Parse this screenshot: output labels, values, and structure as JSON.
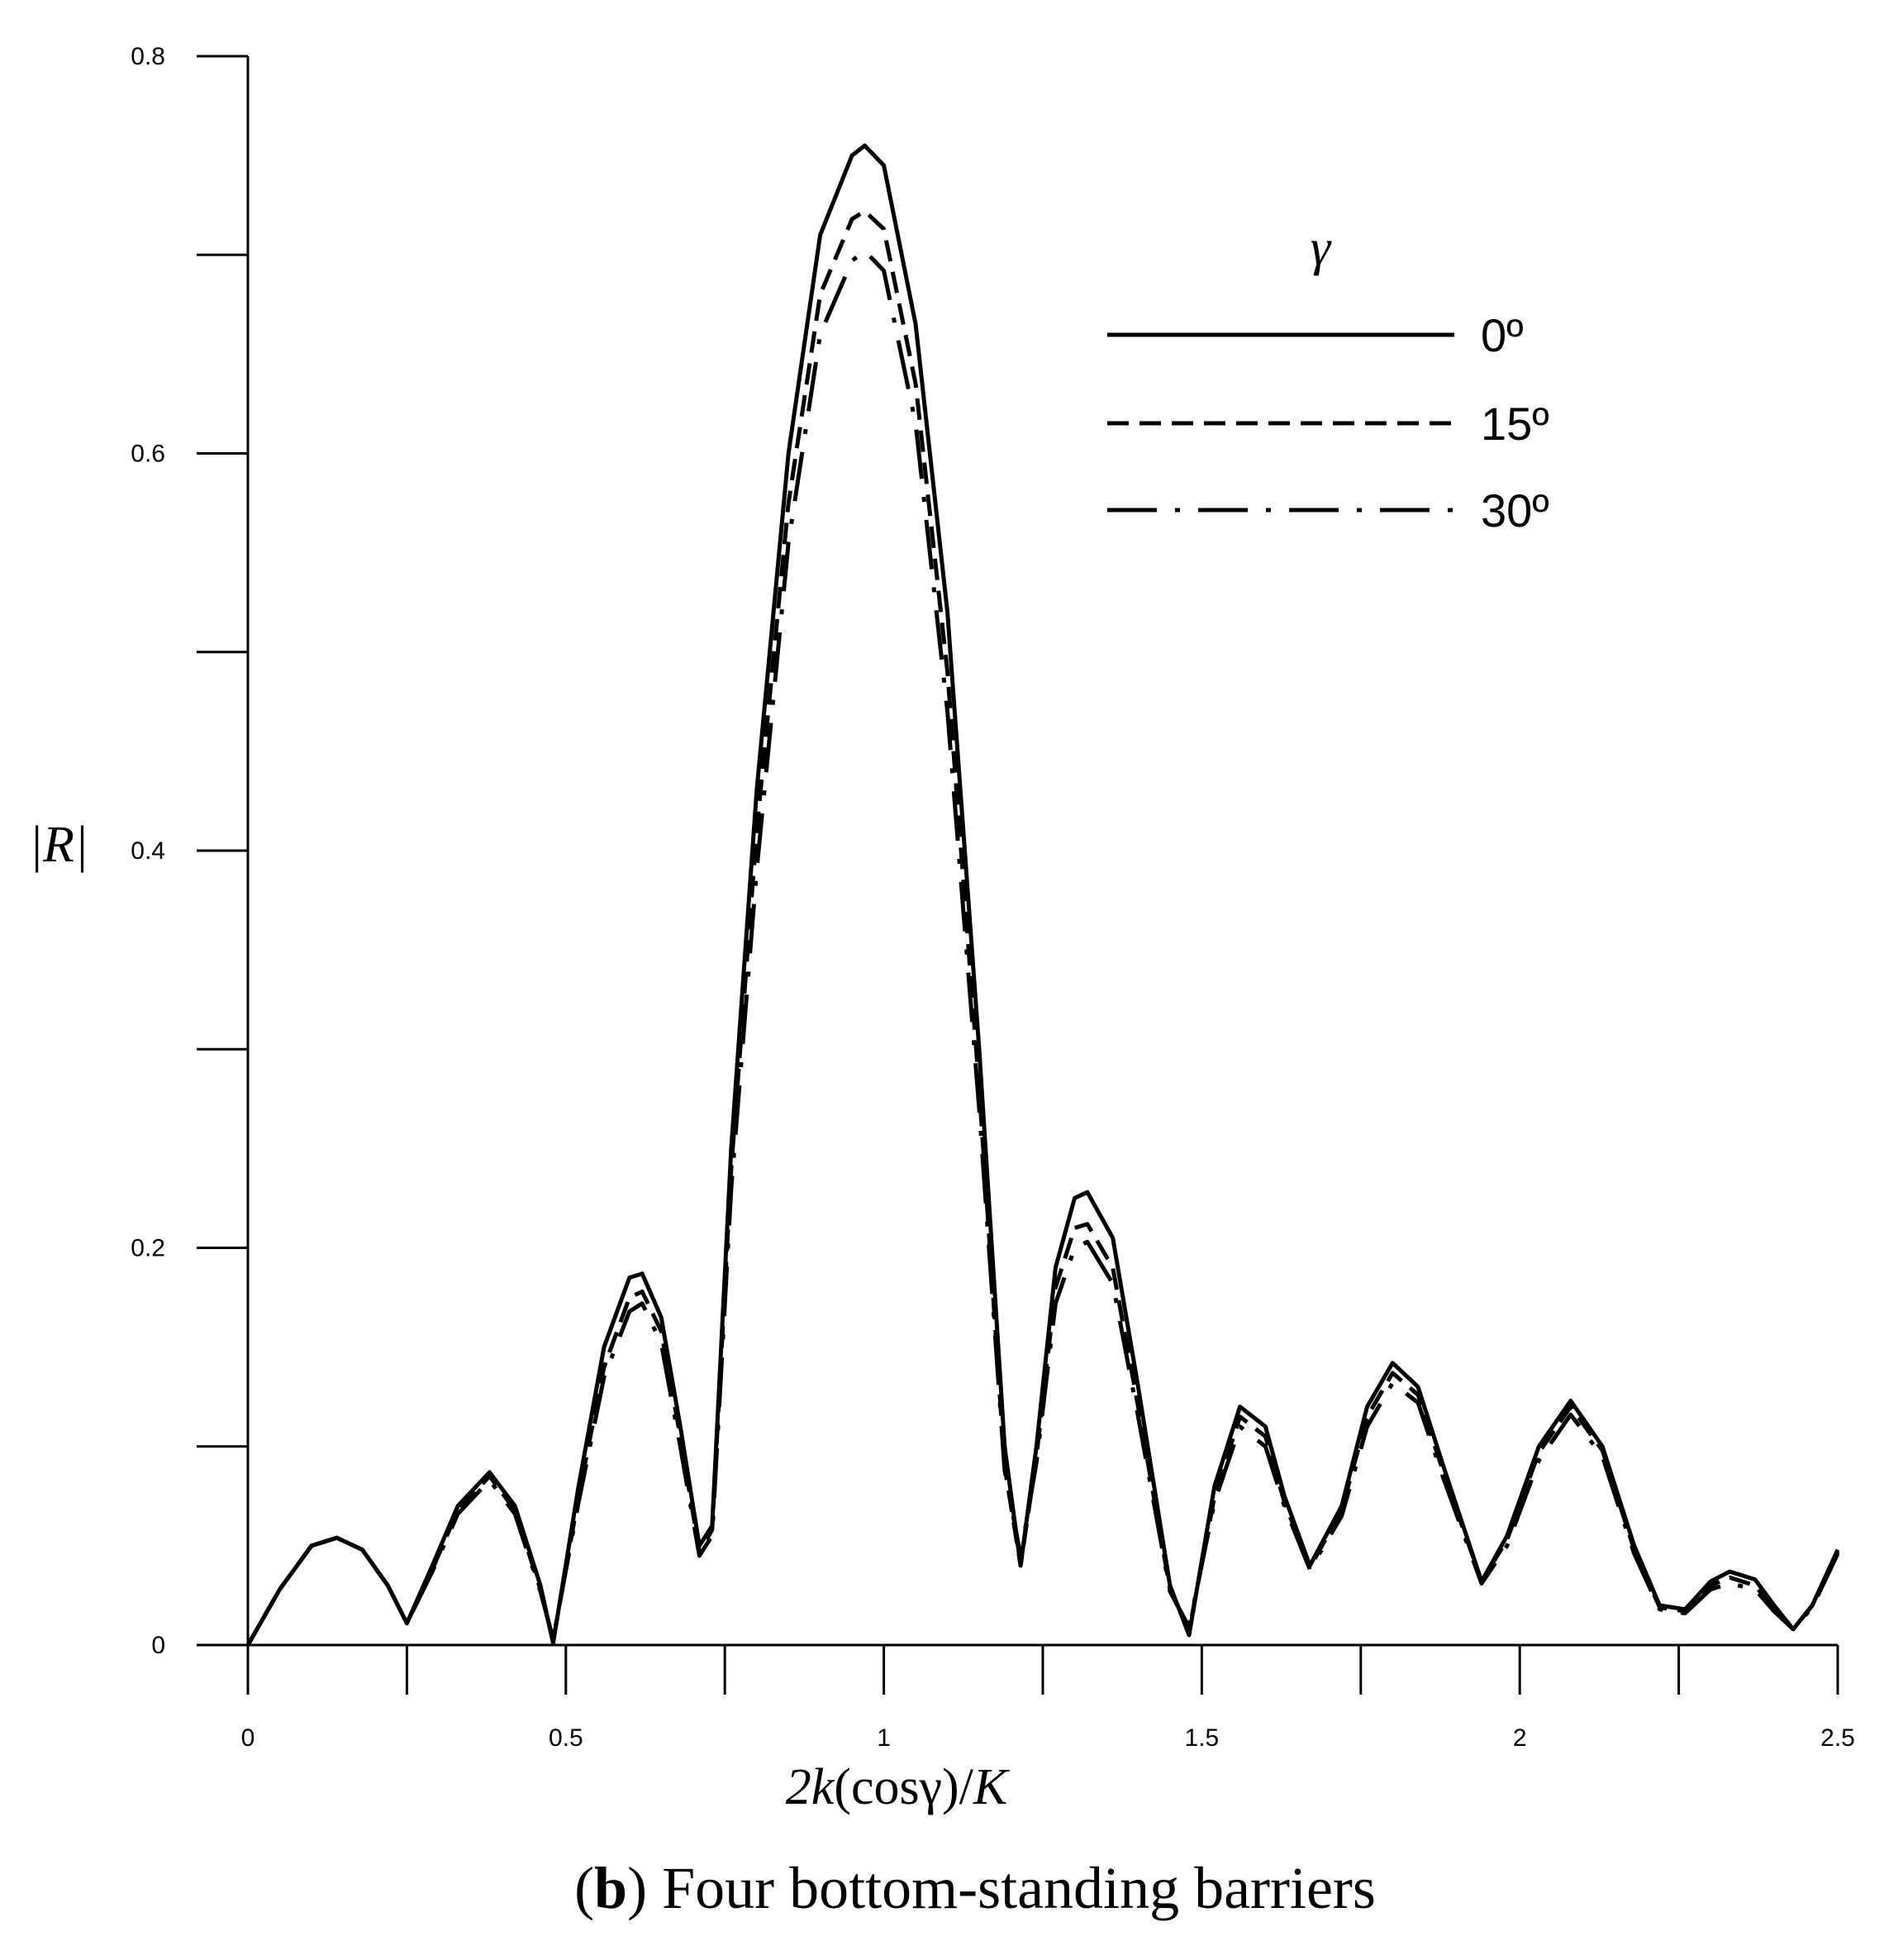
{
  "caption": {
    "prefix": "(",
    "bold": "b",
    "text": ") Four bottom-standing barriers"
  },
  "chart_data": {
    "type": "line",
    "title": "",
    "xlabel": {
      "pre": "2",
      "k": "k",
      "mid": "(cosγ)/",
      "K": "K"
    },
    "ylabel": "|R|",
    "xlim": [
      0,
      2.5
    ],
    "ylim": [
      0,
      0.8
    ],
    "x_ticks": [
      0,
      0.25,
      0.5,
      0.75,
      1,
      1.25,
      1.5,
      1.75,
      2,
      2.25,
      2.5
    ],
    "x_tick_labels": [
      "0",
      "0.5",
      "1",
      "1.5",
      "2",
      "2.5"
    ],
    "x_tick_label_values": [
      0,
      0.5,
      1,
      1.5,
      2,
      2.5
    ],
    "y_ticks": [
      0,
      0.1,
      0.2,
      0.3,
      0.4,
      0.5,
      0.6,
      0.7,
      0.8
    ],
    "y_tick_labels": [
      "0",
      "0.2",
      "0.4",
      "0.6",
      "0.8"
    ],
    "y_tick_label_values": [
      0,
      0.2,
      0.4,
      0.6,
      0.8
    ],
    "legend": {
      "title": "γ",
      "position": "top-right"
    },
    "series": [
      {
        "name": "0º",
        "style": "solid",
        "x": [
          0,
          0.05,
          0.1,
          0.14,
          0.18,
          0.22,
          0.25,
          0.29,
          0.33,
          0.38,
          0.42,
          0.46,
          0.48,
          0.52,
          0.56,
          0.6,
          0.62,
          0.65,
          0.68,
          0.71,
          0.73,
          0.76,
          0.8,
          0.85,
          0.9,
          0.95,
          0.97,
          1.0,
          1.05,
          1.1,
          1.15,
          1.19,
          1.215,
          1.24,
          1.27,
          1.3,
          1.32,
          1.36,
          1.4,
          1.45,
          1.48,
          1.52,
          1.56,
          1.6,
          1.63,
          1.67,
          1.72,
          1.76,
          1.8,
          1.84,
          1.88,
          1.94,
          1.98,
          2.03,
          2.08,
          2.13,
          2.18,
          2.22,
          2.26,
          2.3,
          2.33,
          2.37,
          2.4,
          2.43,
          2.46,
          2.5
        ],
        "y": [
          0,
          0.028,
          0.05,
          0.054,
          0.048,
          0.03,
          0.011,
          0.04,
          0.07,
          0.087,
          0.07,
          0.03,
          0.001,
          0.08,
          0.15,
          0.185,
          0.187,
          0.165,
          0.11,
          0.05,
          0.06,
          0.25,
          0.43,
          0.6,
          0.71,
          0.75,
          0.755,
          0.745,
          0.665,
          0.52,
          0.3,
          0.1,
          0.04,
          0.1,
          0.19,
          0.225,
          0.228,
          0.205,
          0.13,
          0.03,
          0.005,
          0.08,
          0.12,
          0.11,
          0.075,
          0.04,
          0.07,
          0.12,
          0.142,
          0.13,
          0.09,
          0.032,
          0.055,
          0.1,
          0.123,
          0.1,
          0.05,
          0.02,
          0.018,
          0.032,
          0.037,
          0.033,
          0.02,
          0.008,
          0.02,
          0.048
        ]
      },
      {
        "name": "15º",
        "style": "dashed",
        "x": [
          0,
          0.05,
          0.1,
          0.14,
          0.18,
          0.22,
          0.25,
          0.29,
          0.33,
          0.38,
          0.42,
          0.46,
          0.48,
          0.52,
          0.56,
          0.6,
          0.62,
          0.65,
          0.68,
          0.71,
          0.73,
          0.76,
          0.8,
          0.85,
          0.9,
          0.95,
          0.97,
          1.0,
          1.05,
          1.1,
          1.15,
          1.19,
          1.215,
          1.24,
          1.27,
          1.3,
          1.32,
          1.36,
          1.4,
          1.45,
          1.48,
          1.52,
          1.56,
          1.6,
          1.63,
          1.67,
          1.72,
          1.76,
          1.8,
          1.84,
          1.88,
          1.94,
          1.98,
          2.03,
          2.08,
          2.13,
          2.18,
          2.22,
          2.26,
          2.3,
          2.33,
          2.37,
          2.4,
          2.43,
          2.46,
          2.5
        ],
        "y": [
          0,
          0.028,
          0.05,
          0.054,
          0.048,
          0.03,
          0.011,
          0.038,
          0.068,
          0.085,
          0.068,
          0.028,
          0.002,
          0.075,
          0.14,
          0.175,
          0.178,
          0.158,
          0.105,
          0.047,
          0.058,
          0.24,
          0.41,
          0.575,
          0.68,
          0.718,
          0.722,
          0.713,
          0.635,
          0.49,
          0.28,
          0.09,
          0.04,
          0.095,
          0.18,
          0.21,
          0.212,
          0.19,
          0.12,
          0.028,
          0.007,
          0.075,
          0.115,
          0.105,
          0.072,
          0.039,
          0.068,
          0.115,
          0.137,
          0.126,
          0.087,
          0.032,
          0.053,
          0.097,
          0.12,
          0.098,
          0.048,
          0.019,
          0.017,
          0.03,
          0.034,
          0.03,
          0.018,
          0.008,
          0.02,
          0.047
        ]
      },
      {
        "name": "30º",
        "style": "dash-dot",
        "x": [
          0,
          0.05,
          0.1,
          0.14,
          0.18,
          0.22,
          0.25,
          0.29,
          0.33,
          0.38,
          0.42,
          0.46,
          0.48,
          0.52,
          0.56,
          0.6,
          0.62,
          0.65,
          0.68,
          0.71,
          0.73,
          0.76,
          0.8,
          0.85,
          0.9,
          0.95,
          0.97,
          1.0,
          1.05,
          1.1,
          1.15,
          1.19,
          1.215,
          1.24,
          1.27,
          1.3,
          1.32,
          1.36,
          1.4,
          1.45,
          1.48,
          1.52,
          1.56,
          1.6,
          1.63,
          1.67,
          1.72,
          1.76,
          1.8,
          1.84,
          1.88,
          1.94,
          1.98,
          2.03,
          2.08,
          2.13,
          2.18,
          2.22,
          2.26,
          2.3,
          2.33,
          2.37,
          2.4,
          2.43,
          2.46,
          2.5
        ],
        "y": [
          0,
          0.028,
          0.05,
          0.054,
          0.048,
          0.03,
          0.011,
          0.037,
          0.066,
          0.083,
          0.066,
          0.027,
          0.003,
          0.072,
          0.135,
          0.168,
          0.172,
          0.152,
          0.1,
          0.045,
          0.055,
          0.23,
          0.39,
          0.555,
          0.66,
          0.697,
          0.702,
          0.692,
          0.615,
          0.47,
          0.27,
          0.088,
          0.045,
          0.092,
          0.172,
          0.2,
          0.203,
          0.182,
          0.115,
          0.027,
          0.009,
          0.072,
          0.11,
          0.1,
          0.07,
          0.038,
          0.065,
          0.11,
          0.132,
          0.122,
          0.084,
          0.031,
          0.05,
          0.093,
          0.116,
          0.095,
          0.046,
          0.018,
          0.016,
          0.028,
          0.031,
          0.028,
          0.017,
          0.008,
          0.019,
          0.046
        ]
      }
    ]
  }
}
